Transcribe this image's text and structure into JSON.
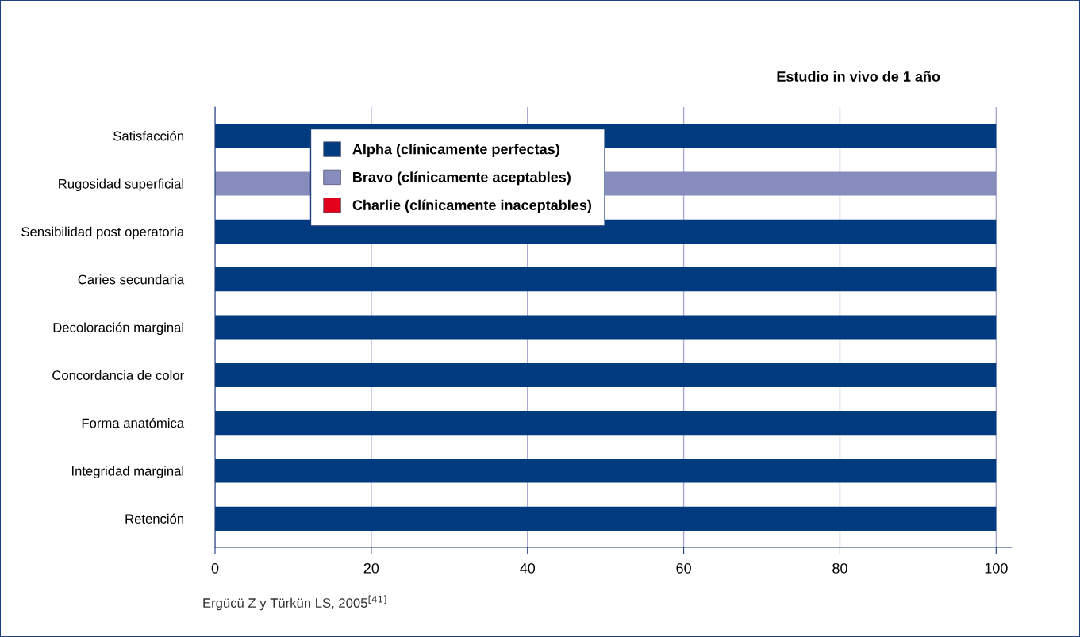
{
  "chart_data": {
    "type": "bar",
    "orientation": "horizontal",
    "title": "Estudio in vivo de 1 año",
    "categories": [
      "Satisfacción",
      "Rugosidad superficial",
      "Sensibilidad post operatoria",
      "Caries secundaria",
      "Decoloración marginal",
      "Concordancia de color",
      "Forma anatómica",
      "Integridad marginal",
      "Retención"
    ],
    "series": [
      {
        "name": "Alpha (clínicamente perfectas)",
        "color": "#003b7f",
        "values": [
          100,
          0,
          100,
          100,
          100,
          100,
          100,
          100,
          100
        ]
      },
      {
        "name": "Bravo (clínicamente aceptables)",
        "color": "#878cbd",
        "values": [
          0,
          100,
          0,
          0,
          0,
          0,
          0,
          0,
          0
        ]
      },
      {
        "name": "Charlie (clínicamente inaceptables)",
        "color": "#e2001a",
        "values": [
          0,
          0,
          0,
          0,
          0,
          0,
          0,
          0,
          0
        ]
      }
    ],
    "xlim": [
      0,
      102
    ],
    "xticks": [
      0,
      20,
      40,
      60,
      80,
      100
    ],
    "grid": "x",
    "legend": "top left",
    "annotations": [
      "Ergücü Z y Türkün LS, 2005$^{[41]}$"
    ]
  }
}
